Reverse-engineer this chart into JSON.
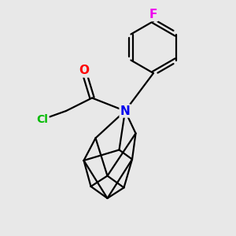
{
  "background_color": "#e8e8e8",
  "atom_colors": {
    "N": "#0000ee",
    "O": "#ff0000",
    "Cl": "#00bb00",
    "F": "#ee00ee",
    "C": "#000000"
  },
  "bond_color": "#000000",
  "bond_width": 1.6,
  "font_size_atom": 10
}
